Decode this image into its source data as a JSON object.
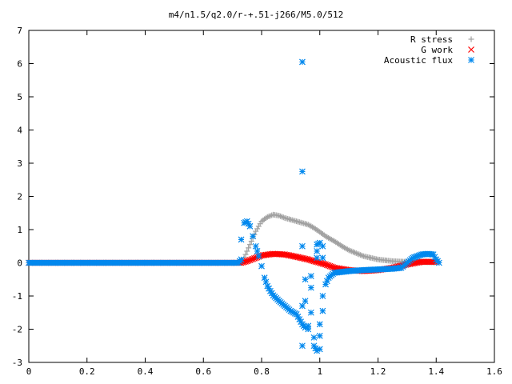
{
  "chart_data": {
    "type": "scatter",
    "title": "m4/n1.5/q2.0/r-+.51-j266/M5.0/512",
    "xlabel": "",
    "ylabel": "",
    "xlim": [
      0,
      1.6
    ],
    "ylim": [
      -3,
      7
    ],
    "x_ticks": [
      0,
      0.2,
      0.4,
      0.6,
      0.8,
      1,
      1.2,
      1.4,
      1.6
    ],
    "y_ticks": [
      -3,
      -2,
      -1,
      0,
      1,
      2,
      3,
      4,
      5,
      6,
      7
    ],
    "grid": false,
    "legend_position": "top-right",
    "series": [
      {
        "name": "R stress",
        "marker": "plus",
        "color": "#a0a0a0",
        "points": [
          [
            0.0,
            0.0
          ],
          [
            0.7,
            0.0
          ],
          [
            0.73,
            0.0
          ],
          [
            0.74,
            0.15
          ],
          [
            0.76,
            0.55
          ],
          [
            0.78,
            0.95
          ],
          [
            0.8,
            1.25
          ],
          [
            0.82,
            1.38
          ],
          [
            0.84,
            1.45
          ],
          [
            0.86,
            1.42
          ],
          [
            0.88,
            1.35
          ],
          [
            0.9,
            1.3
          ],
          [
            0.92,
            1.25
          ],
          [
            0.94,
            1.2
          ],
          [
            0.96,
            1.15
          ],
          [
            0.98,
            1.05
          ],
          [
            1.0,
            0.93
          ],
          [
            1.02,
            0.8
          ],
          [
            1.05,
            0.65
          ],
          [
            1.08,
            0.48
          ],
          [
            1.1,
            0.38
          ],
          [
            1.15,
            0.2
          ],
          [
            1.2,
            0.1
          ],
          [
            1.25,
            0.05
          ],
          [
            1.3,
            0.03
          ],
          [
            1.35,
            0.02
          ],
          [
            1.4,
            0.01
          ]
        ]
      },
      {
        "name": "G work",
        "marker": "cross",
        "color": "#ff0000",
        "points": [
          [
            0.0,
            0.0
          ],
          [
            0.7,
            0.0
          ],
          [
            0.73,
            0.0
          ],
          [
            0.75,
            0.05
          ],
          [
            0.78,
            0.15
          ],
          [
            0.8,
            0.22
          ],
          [
            0.84,
            0.27
          ],
          [
            0.88,
            0.25
          ],
          [
            0.92,
            0.18
          ],
          [
            0.96,
            0.1
          ],
          [
            1.0,
            0.0
          ],
          [
            1.02,
            -0.05
          ],
          [
            1.05,
            -0.15
          ],
          [
            1.1,
            -0.22
          ],
          [
            1.15,
            -0.25
          ],
          [
            1.2,
            -0.22
          ],
          [
            1.25,
            -0.15
          ],
          [
            1.3,
            -0.05
          ],
          [
            1.35,
            0.03
          ],
          [
            1.4,
            0.03
          ]
        ]
      },
      {
        "name": "Acoustic flux",
        "marker": "star",
        "color": "#0088ee",
        "points": [
          [
            0.0,
            0.0
          ],
          [
            0.72,
            0.0
          ],
          [
            0.73,
            0.1
          ],
          [
            0.73,
            0.7
          ],
          [
            0.74,
            1.2
          ],
          [
            0.75,
            1.25
          ],
          [
            0.76,
            1.1
          ],
          [
            0.77,
            0.8
          ],
          [
            0.78,
            0.5
          ],
          [
            0.79,
            0.2
          ],
          [
            0.8,
            -0.1
          ],
          [
            0.81,
            -0.45
          ],
          [
            0.82,
            -0.7
          ],
          [
            0.83,
            -0.85
          ],
          [
            0.84,
            -0.98
          ],
          [
            0.86,
            -1.15
          ],
          [
            0.88,
            -1.3
          ],
          [
            0.9,
            -1.45
          ],
          [
            0.92,
            -1.55
          ],
          [
            0.93,
            -1.7
          ],
          [
            0.94,
            -1.85
          ],
          [
            0.95,
            -1.95
          ],
          [
            0.94,
            6.05
          ],
          [
            0.94,
            2.75
          ],
          [
            0.94,
            0.5
          ],
          [
            0.94,
            -1.3
          ],
          [
            0.94,
            -2.5
          ],
          [
            0.95,
            -0.5
          ],
          [
            0.95,
            -1.15
          ],
          [
            0.96,
            -1.9
          ],
          [
            0.96,
            -2.0
          ],
          [
            0.97,
            -0.4
          ],
          [
            0.97,
            -0.75
          ],
          [
            0.97,
            -1.5
          ],
          [
            0.98,
            -2.25
          ],
          [
            0.98,
            -2.5
          ],
          [
            0.99,
            -2.65
          ],
          [
            0.99,
            0.15
          ],
          [
            0.99,
            0.35
          ],
          [
            0.99,
            0.55
          ],
          [
            1.0,
            0.6
          ],
          [
            1.0,
            -2.6
          ],
          [
            1.0,
            -2.2
          ],
          [
            1.0,
            -1.85
          ],
          [
            1.01,
            0.5
          ],
          [
            1.01,
            0.15
          ],
          [
            1.01,
            -1.45
          ],
          [
            1.01,
            -1.0
          ],
          [
            1.02,
            -0.65
          ],
          [
            1.03,
            -0.45
          ],
          [
            1.05,
            -0.3
          ],
          [
            1.1,
            -0.25
          ],
          [
            1.15,
            -0.22
          ],
          [
            1.2,
            -0.2
          ],
          [
            1.25,
            -0.18
          ],
          [
            1.28,
            -0.15
          ],
          [
            1.3,
            0.0
          ],
          [
            1.32,
            0.15
          ],
          [
            1.35,
            0.25
          ],
          [
            1.37,
            0.27
          ],
          [
            1.39,
            0.25
          ],
          [
            1.4,
            0.1
          ],
          [
            1.41,
            0.0
          ]
        ]
      }
    ]
  }
}
